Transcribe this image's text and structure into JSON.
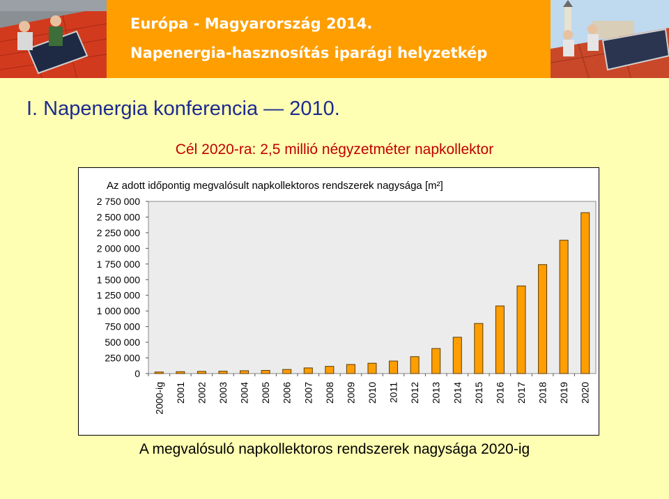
{
  "banner": {
    "title_line1": "Európa - Magyarország 2014.",
    "title_line2": "Napenergia-hasznosítás iparági helyzetkép"
  },
  "conference_title": "I. Napenergia konferencia — 2010.",
  "goal_text": "Cél 2020-ra: 2,5 millió négyzetméter napkollektor",
  "caption": "A megvalósuló napkollektoros rendszerek nagysága 2020-ig",
  "colors": {
    "background": "#ffffb3",
    "banner": "#ff9e00",
    "bar_fill": "#ff9e00",
    "bar_stroke": "#5a3a00",
    "plot_bg": "#ececec",
    "goal_text": "#c00000",
    "conference_text": "#1c2b8f"
  },
  "chart_data": {
    "type": "bar",
    "title": "Az adott időpontig megvalósult napkollektoros rendszerek nagysága [m²]",
    "xlabel": "",
    "ylabel": "",
    "ylim": [
      0,
      2750000
    ],
    "y_ticks": [
      0,
      250000,
      500000,
      750000,
      1000000,
      1250000,
      1500000,
      1750000,
      2000000,
      2250000,
      2500000,
      2750000
    ],
    "y_tick_labels": [
      "0",
      "250 000",
      "500 000",
      "750 000",
      "1 000 000",
      "1 250 000",
      "1 500 000",
      "1 750 000",
      "2 000 000",
      "2 250 000",
      "2 500 000",
      "2 750 000"
    ],
    "grid": false,
    "legend": "none",
    "categories": [
      "2000-ig",
      "2001",
      "2002",
      "2003",
      "2004",
      "2005",
      "2006",
      "2007",
      "2008",
      "2009",
      "2010",
      "2011",
      "2012",
      "2013",
      "2014",
      "2015",
      "2016",
      "2017",
      "2018",
      "2019",
      "2020"
    ],
    "values": [
      25000,
      30000,
      35000,
      38000,
      45000,
      50000,
      65000,
      90000,
      115000,
      145000,
      165000,
      200000,
      270000,
      400000,
      580000,
      800000,
      1080000,
      1400000,
      1740000,
      2130000,
      2570000
    ]
  }
}
